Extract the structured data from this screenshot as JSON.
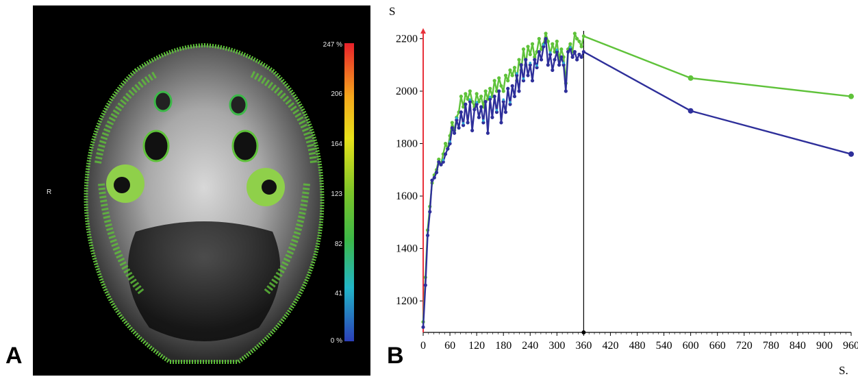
{
  "panels": {
    "a_label": "A",
    "b_label": "B"
  },
  "mri": {
    "side_marker": "R",
    "colorbar_ticks": [
      "247 %",
      "206",
      "164",
      "123",
      "82",
      "41",
      "0 %"
    ],
    "colorbar_colors": [
      "#e8202a",
      "#f5a81c",
      "#e8e21a",
      "#7cc428",
      "#3cb848",
      "#22b6c8",
      "#2b3fb8"
    ]
  },
  "chart_data": {
    "type": "line",
    "ylabel": "S",
    "xlabel": "S.",
    "xlim": [
      0,
      960
    ],
    "ylim": [
      1080,
      2230
    ],
    "xticks": [
      0,
      60,
      120,
      180,
      240,
      300,
      360,
      420,
      480,
      540,
      600,
      660,
      720,
      780,
      840,
      900,
      960
    ],
    "yticks": [
      1200,
      1400,
      1600,
      1800,
      2000,
      2200
    ],
    "grid": false,
    "marker_line_x": 360,
    "start_line_x": 0,
    "colors": {
      "green": "#5fc23a",
      "blue": "#2e2f9a",
      "cyan": "#2aa6d6",
      "red": "#e8303a",
      "marker": "#000000"
    },
    "series": [
      {
        "color": "green",
        "x": [
          0,
          5,
          10,
          15,
          20,
          25,
          30,
          35,
          40,
          45,
          50,
          55,
          60,
          65,
          70,
          75,
          80,
          85,
          90,
          95,
          100,
          105,
          110,
          115,
          120,
          125,
          130,
          135,
          140,
          145,
          150,
          155,
          160,
          165,
          170,
          175,
          180,
          185,
          190,
          195,
          200,
          205,
          210,
          215,
          220,
          225,
          230,
          235,
          240,
          245,
          250,
          255,
          260,
          265,
          270,
          275,
          280,
          285,
          290,
          295,
          300,
          305,
          310,
          315,
          320,
          325,
          330,
          335,
          340,
          345,
          350,
          355,
          360,
          600,
          960
        ],
        "values": [
          1120,
          1290,
          1470,
          1560,
          1650,
          1680,
          1700,
          1740,
          1720,
          1760,
          1800,
          1780,
          1830,
          1880,
          1850,
          1900,
          1920,
          1980,
          1940,
          1990,
          1970,
          2000,
          1960,
          1940,
          1990,
          1960,
          1980,
          1940,
          2000,
          1970,
          2010,
          1980,
          2040,
          2000,
          2050,
          2020,
          2000,
          2060,
          2040,
          2080,
          2060,
          2090,
          2040,
          2120,
          2080,
          2160,
          2100,
          2170,
          2140,
          2180,
          2130,
          2150,
          2200,
          2160,
          2180,
          2220,
          2190,
          2140,
          2180,
          2150,
          2190,
          2120,
          2160,
          2130,
          2030,
          2160,
          2180,
          2150,
          2220,
          2200,
          2190,
          2170,
          2210,
          2050,
          1980
        ]
      },
      {
        "color": "blue",
        "x": [
          0,
          5,
          10,
          15,
          20,
          25,
          30,
          35,
          40,
          45,
          50,
          55,
          60,
          65,
          70,
          75,
          80,
          85,
          90,
          95,
          100,
          105,
          110,
          115,
          120,
          125,
          130,
          135,
          140,
          145,
          150,
          155,
          160,
          165,
          170,
          175,
          180,
          185,
          190,
          195,
          200,
          205,
          210,
          215,
          220,
          225,
          230,
          235,
          240,
          245,
          250,
          255,
          260,
          265,
          270,
          275,
          280,
          285,
          290,
          295,
          300,
          305,
          310,
          315,
          320,
          325,
          330,
          335,
          340,
          345,
          350,
          355,
          360,
          600,
          960
        ],
        "values": [
          1100,
          1260,
          1450,
          1540,
          1660,
          1670,
          1690,
          1730,
          1720,
          1730,
          1760,
          1780,
          1800,
          1860,
          1840,
          1890,
          1860,
          1920,
          1870,
          1950,
          1880,
          1960,
          1850,
          1930,
          1950,
          1900,
          1940,
          1880,
          1960,
          1840,
          1970,
          1900,
          1980,
          1920,
          2000,
          1880,
          1960,
          1920,
          2010,
          1950,
          2020,
          1980,
          2060,
          2000,
          2100,
          2040,
          2120,
          2060,
          2100,
          2040,
          2120,
          2090,
          2150,
          2120,
          2170,
          2200,
          2100,
          2140,
          2080,
          2120,
          2150,
          2100,
          2130,
          2100,
          2000,
          2150,
          2160,
          2130,
          2150,
          2120,
          2140,
          2130,
          2150,
          1925,
          1760
        ]
      }
    ]
  }
}
